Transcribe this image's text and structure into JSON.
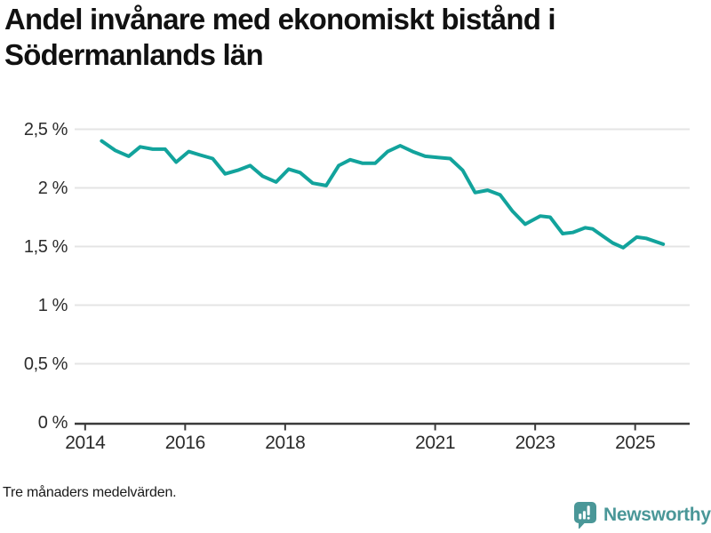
{
  "title_lines": [
    "Andel invånare med ekonomiskt bistånd i",
    "Södermanlands län"
  ],
  "footnote": "Tre månaders medelvärden.",
  "branding": {
    "name": "Newsworthy",
    "icon": "newsworthy-speech-bubble-barchart-icon",
    "color": "#4a9798"
  },
  "colors": {
    "line": "#12a39c",
    "grid": "#e4e4e4",
    "axis": "#3a3a3a",
    "tick_text": "#2b2b2b",
    "title_text": "#111111",
    "background": "#ffffff"
  },
  "chart_data": {
    "type": "line",
    "title": "Andel invånare med ekonomiskt bistånd i Södermanlands län",
    "xlabel": "",
    "ylabel": "",
    "x_unit": "year (decimal, monthly 3-month rolling average)",
    "y_unit": "percent of residents",
    "xlim": [
      2013.79,
      2026.09
    ],
    "ylim": [
      0,
      2.5
    ],
    "grid": "horizontal",
    "legend": "none",
    "xticks": {
      "values": [
        2014,
        2016,
        2018,
        2021,
        2023,
        2025
      ],
      "labels": [
        "2014",
        "2016",
        "2018",
        "2021",
        "2023",
        "2025"
      ]
    },
    "yticks": {
      "values": [
        0,
        0.5,
        1,
        1.5,
        2,
        2.5
      ],
      "labels": [
        "0 %",
        "0,5 %",
        "1 %",
        "1,5 %",
        "2 %",
        "2,5 %"
      ]
    },
    "series": [
      {
        "name": "Södermanlands län",
        "color": "#12a39c",
        "x": [
          2014.33,
          2014.6,
          2014.87,
          2015.1,
          2015.35,
          2015.6,
          2015.82,
          2016.07,
          2016.3,
          2016.55,
          2016.8,
          2017.05,
          2017.3,
          2017.55,
          2017.82,
          2018.07,
          2018.3,
          2018.55,
          2018.82,
          2019.07,
          2019.3,
          2019.55,
          2019.8,
          2020.05,
          2020.3,
          2020.55,
          2020.8,
          2021.05,
          2021.3,
          2021.55,
          2021.8,
          2022.05,
          2022.3,
          2022.55,
          2022.8,
          2023.1,
          2023.3,
          2023.55,
          2023.75,
          2024.0,
          2024.15,
          2024.35,
          2024.55,
          2024.76,
          2025.03,
          2025.22,
          2025.56
        ],
        "values": [
          2.4,
          2.32,
          2.27,
          2.35,
          2.33,
          2.33,
          2.22,
          2.31,
          2.28,
          2.25,
          2.12,
          2.15,
          2.19,
          2.1,
          2.05,
          2.16,
          2.13,
          2.04,
          2.02,
          2.19,
          2.24,
          2.21,
          2.21,
          2.31,
          2.36,
          2.31,
          2.27,
          2.26,
          2.25,
          2.15,
          1.96,
          1.98,
          1.94,
          1.8,
          1.69,
          1.76,
          1.75,
          1.61,
          1.62,
          1.66,
          1.65,
          1.59,
          1.53,
          1.49,
          1.58,
          1.57,
          1.52
        ]
      }
    ]
  }
}
